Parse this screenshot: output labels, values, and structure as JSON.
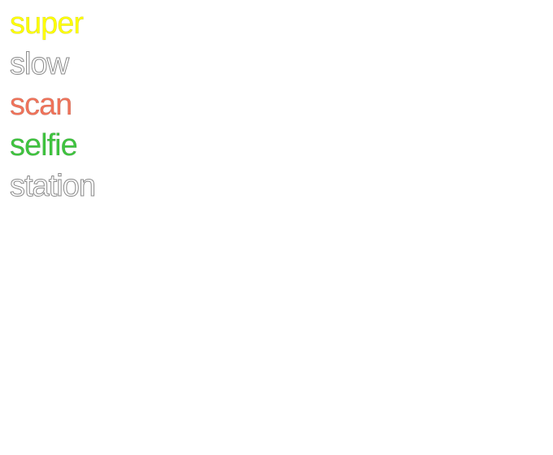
{
  "words": [
    {
      "text": "super",
      "color": "#ffff00",
      "style": "solid"
    },
    {
      "text": "slow",
      "color": "#ffffff",
      "style": "outline"
    },
    {
      "text": "scan",
      "color": "#f0735a",
      "style": "solid"
    },
    {
      "text": "selfie",
      "color": "#3fc43f",
      "style": "solid"
    },
    {
      "text": "station",
      "color": "#ffffff",
      "style": "outline"
    }
  ]
}
